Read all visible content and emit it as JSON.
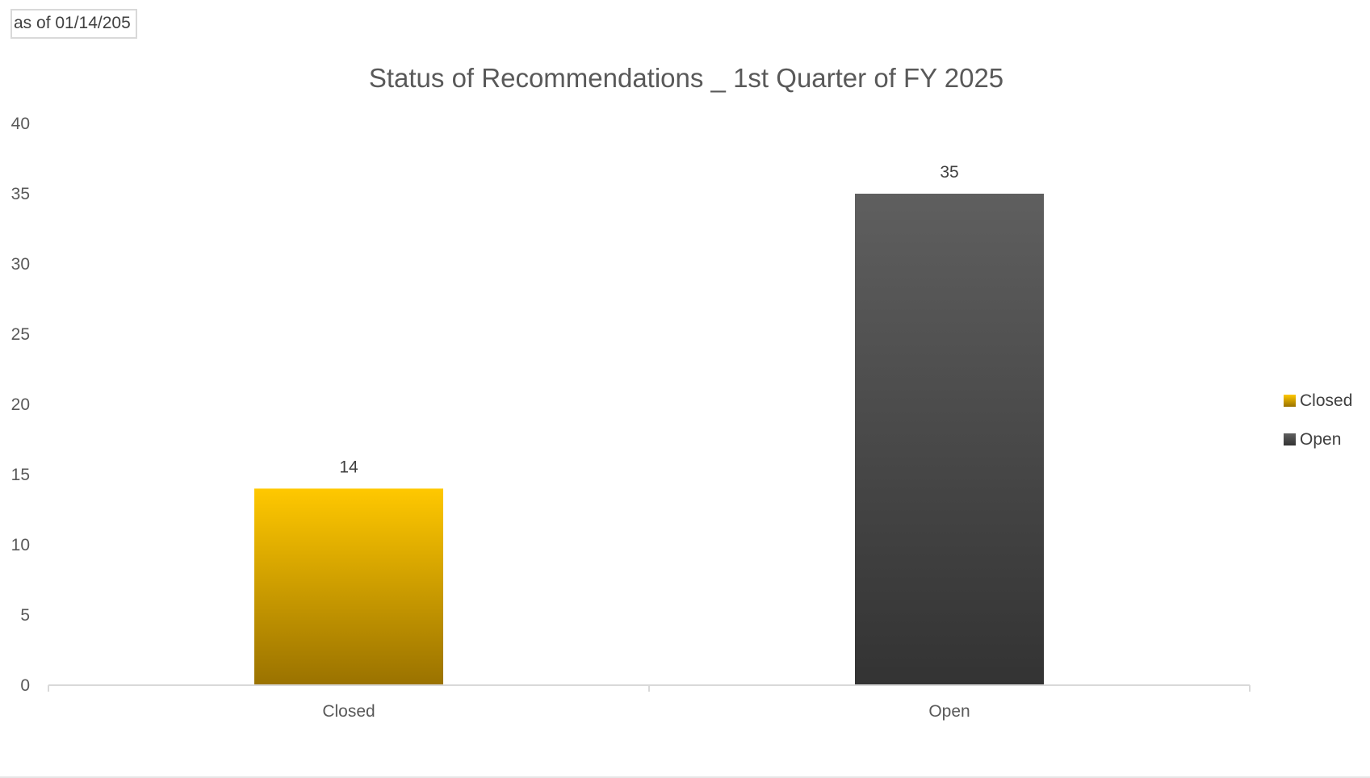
{
  "note": {
    "date_text": "as of 01/14/205"
  },
  "chart_data": {
    "type": "bar",
    "title": "Status of Recommendations _ 1st Quarter of FY 2025",
    "xlabel": "",
    "ylabel": "",
    "categories": [
      "Closed",
      "Open"
    ],
    "values": [
      14,
      35
    ],
    "data_labels": [
      "14",
      "35"
    ],
    "ylim": [
      0,
      40
    ],
    "yticks": [
      0,
      5,
      10,
      15,
      20,
      25,
      30,
      35,
      40
    ],
    "grid": false,
    "legend_position": "right",
    "legend": [
      "Closed",
      "Open"
    ],
    "colors": {
      "Closed": [
        "#ffc800",
        "#9a7200"
      ],
      "Open": [
        "#5f5f5f",
        "#333333"
      ]
    }
  }
}
